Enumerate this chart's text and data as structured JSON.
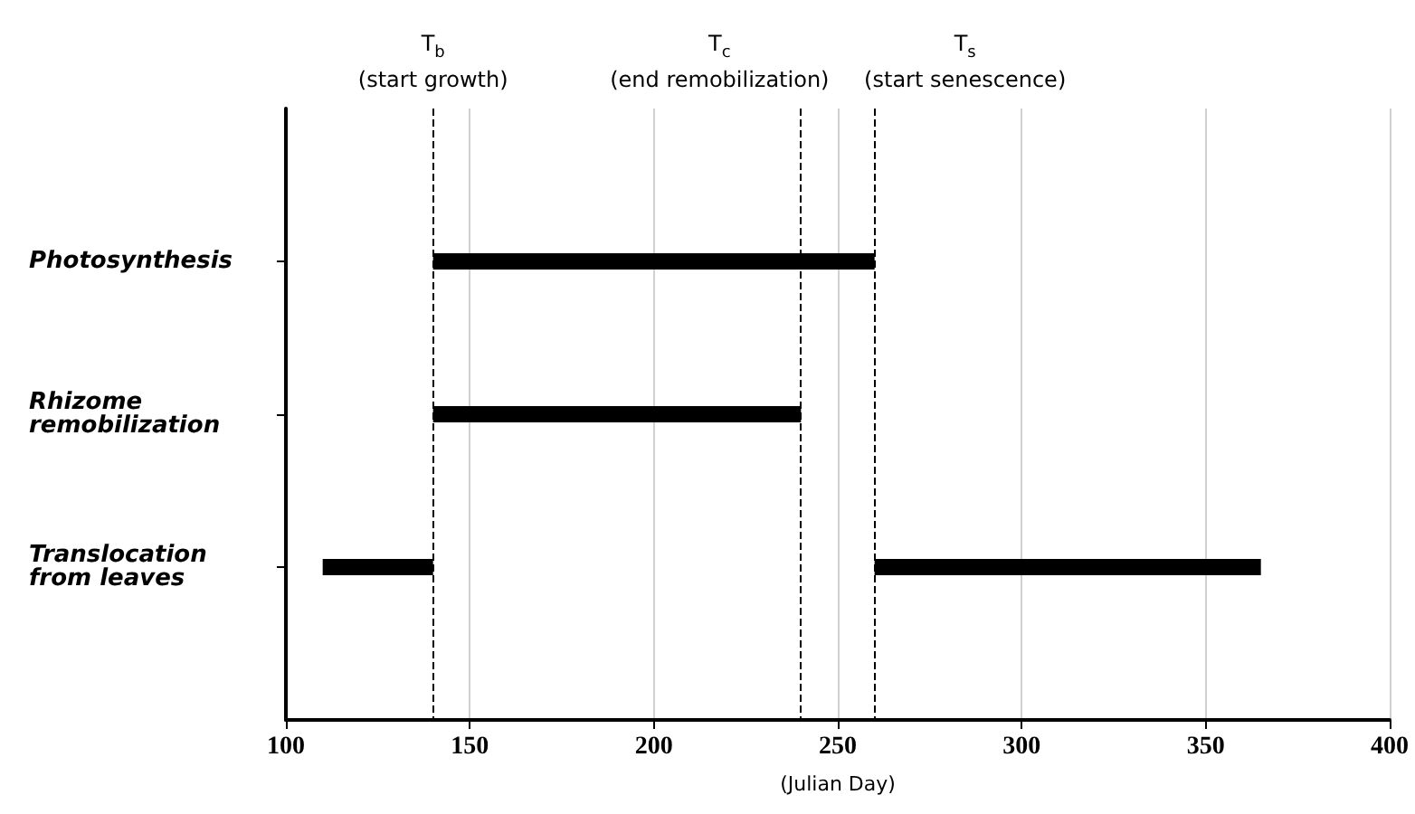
{
  "chart_data": {
    "type": "bar",
    "orientation": "horizontal",
    "xlabel": "(Julian Day)",
    "categories": [
      null,
      "Photosynthesis",
      "Rhizome remobilization",
      "Translocation from leaves",
      null
    ],
    "series": [
      {
        "color": "#000000",
        "base": [
          null,
          140,
          140,
          110,
          null
        ],
        "values": [
          null,
          120,
          100,
          30,
          null
        ]
      },
      {
        "color": "#000000",
        "base": [
          null,
          null,
          null,
          260,
          null
        ],
        "values": [
          null,
          null,
          null,
          105,
          null
        ]
      }
    ],
    "xlim": [
      100,
      400
    ],
    "xticks": [
      100,
      150,
      200,
      250,
      300,
      350,
      400
    ],
    "grid": "x",
    "ref_lines": [
      {
        "axis": "x",
        "value": 140,
        "label": "T$_{b}$\n(start growth)",
        "color": "#000000",
        "line_style": "dashed"
      },
      {
        "axis": "x",
        "value": 240,
        "label": "T$_{c}$\n(end remobilization)",
        "color": "#000000",
        "line_style": "dashed"
      },
      {
        "axis": "x",
        "value": 260,
        "label": "T$_{s}$\n(start senescence)",
        "color": "#000000",
        "line_style": "dashed"
      }
    ]
  }
}
